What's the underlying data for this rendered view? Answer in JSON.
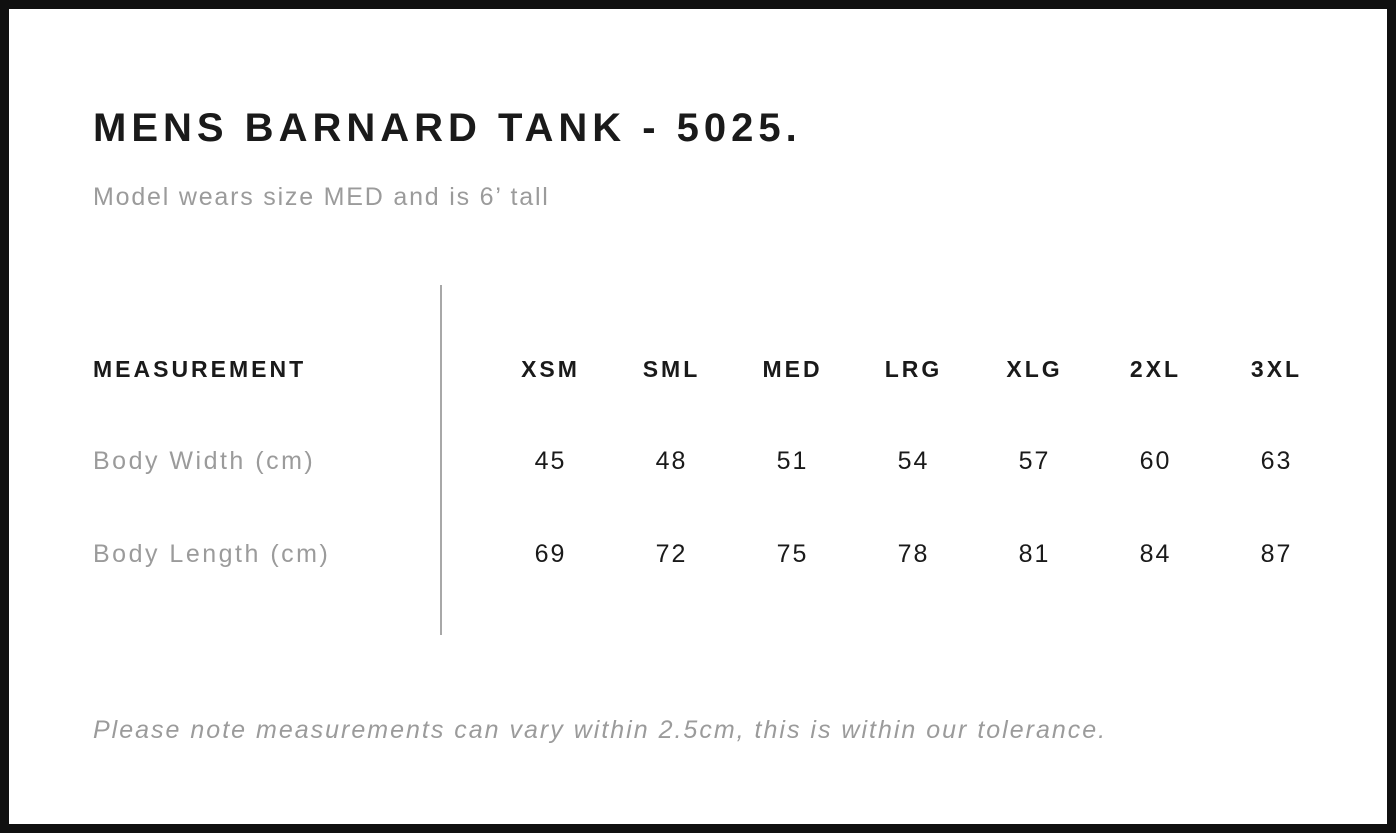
{
  "page": {
    "title": "MENS BARNARD TANK - 5025.",
    "subtitle": "Model wears size MED and is 6’ tall",
    "footnote": "Please note measurements can vary within 2.5cm, this is within our tolerance."
  },
  "size_chart": {
    "measurement_header": "MEASUREMENT",
    "sizes": [
      "XSM",
      "SML",
      "MED",
      "LRG",
      "XLG",
      "2XL",
      "3XL"
    ],
    "rows": [
      {
        "label": "Body Width (cm)",
        "values": [
          45,
          48,
          51,
          54,
          57,
          60,
          63
        ]
      },
      {
        "label": "Body Length (cm)",
        "values": [
          69,
          72,
          75,
          78,
          81,
          84,
          87
        ]
      }
    ]
  },
  "chart_data": {
    "type": "table",
    "title": "MENS BARNARD TANK - 5025.",
    "columns": [
      "MEASUREMENT",
      "XSM",
      "SML",
      "MED",
      "LRG",
      "XLG",
      "2XL",
      "3XL"
    ],
    "rows": [
      [
        "Body Width (cm)",
        45,
        48,
        51,
        54,
        57,
        60,
        63
      ],
      [
        "Body Length (cm)",
        69,
        72,
        75,
        78,
        81,
        84,
        87
      ]
    ]
  },
  "colors": {
    "ink": "#1a1a1a",
    "muted": "#9b9b9b",
    "divider": "#a8a8a8",
    "frame": "#101010",
    "paper": "#ffffff"
  }
}
